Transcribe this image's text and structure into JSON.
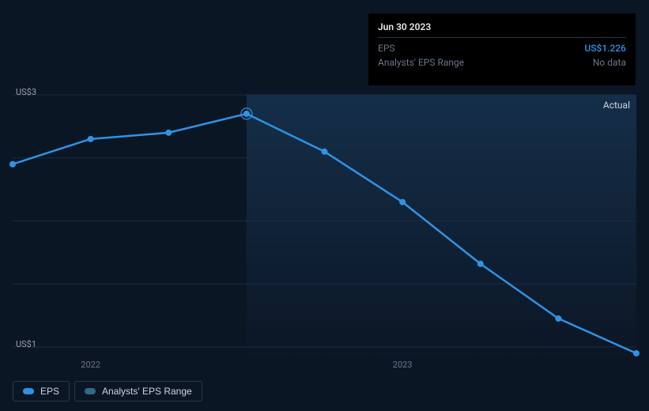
{
  "chart": {
    "type": "line",
    "background_color": "#0b1625",
    "series_color": "#2e93e6",
    "marker_radius": 4,
    "line_width": 2.5,
    "grid_color": "#1d2a3a",
    "actual_region_start_x": 2022.5,
    "actual_label": "Actual",
    "x_range": [
      2021.75,
      2023.75
    ],
    "y_range": [
      0.9,
      3.0
    ],
    "y_ticks": [
      {
        "v": 3.0,
        "label": "US$3"
      },
      {
        "v": 1.0,
        "label": "US$1"
      }
    ],
    "y_gridlines": [
      3.0,
      2.5,
      2.0,
      1.5,
      1.0
    ],
    "x_ticks": [
      {
        "v": 2022,
        "label": "2022"
      },
      {
        "v": 2023,
        "label": "2023"
      }
    ],
    "points": [
      {
        "x": 2021.75,
        "y": 2.45
      },
      {
        "x": 2022.0,
        "y": 2.65
      },
      {
        "x": 2022.25,
        "y": 2.7
      },
      {
        "x": 2022.5,
        "y": 2.85
      },
      {
        "x": 2022.75,
        "y": 2.55
      },
      {
        "x": 2023.0,
        "y": 2.15
      },
      {
        "x": 2023.25,
        "y": 1.66
      },
      {
        "x": 2023.5,
        "y": 1.226
      },
      {
        "x": 2023.75,
        "y": 0.95
      }
    ],
    "highlight_index": 3
  },
  "tooltip": {
    "date": "Jun 30 2023",
    "rows": [
      {
        "key": "EPS",
        "value": "US$1.226",
        "style": "eps"
      },
      {
        "key": "Analysts' EPS Range",
        "value": "No data",
        "style": "muted"
      }
    ]
  },
  "legend": {
    "items": [
      {
        "label": "EPS",
        "swatch_color": "#2e93e6"
      },
      {
        "label": "Analysts' EPS Range",
        "swatch_color": "#2f6a82"
      }
    ]
  }
}
